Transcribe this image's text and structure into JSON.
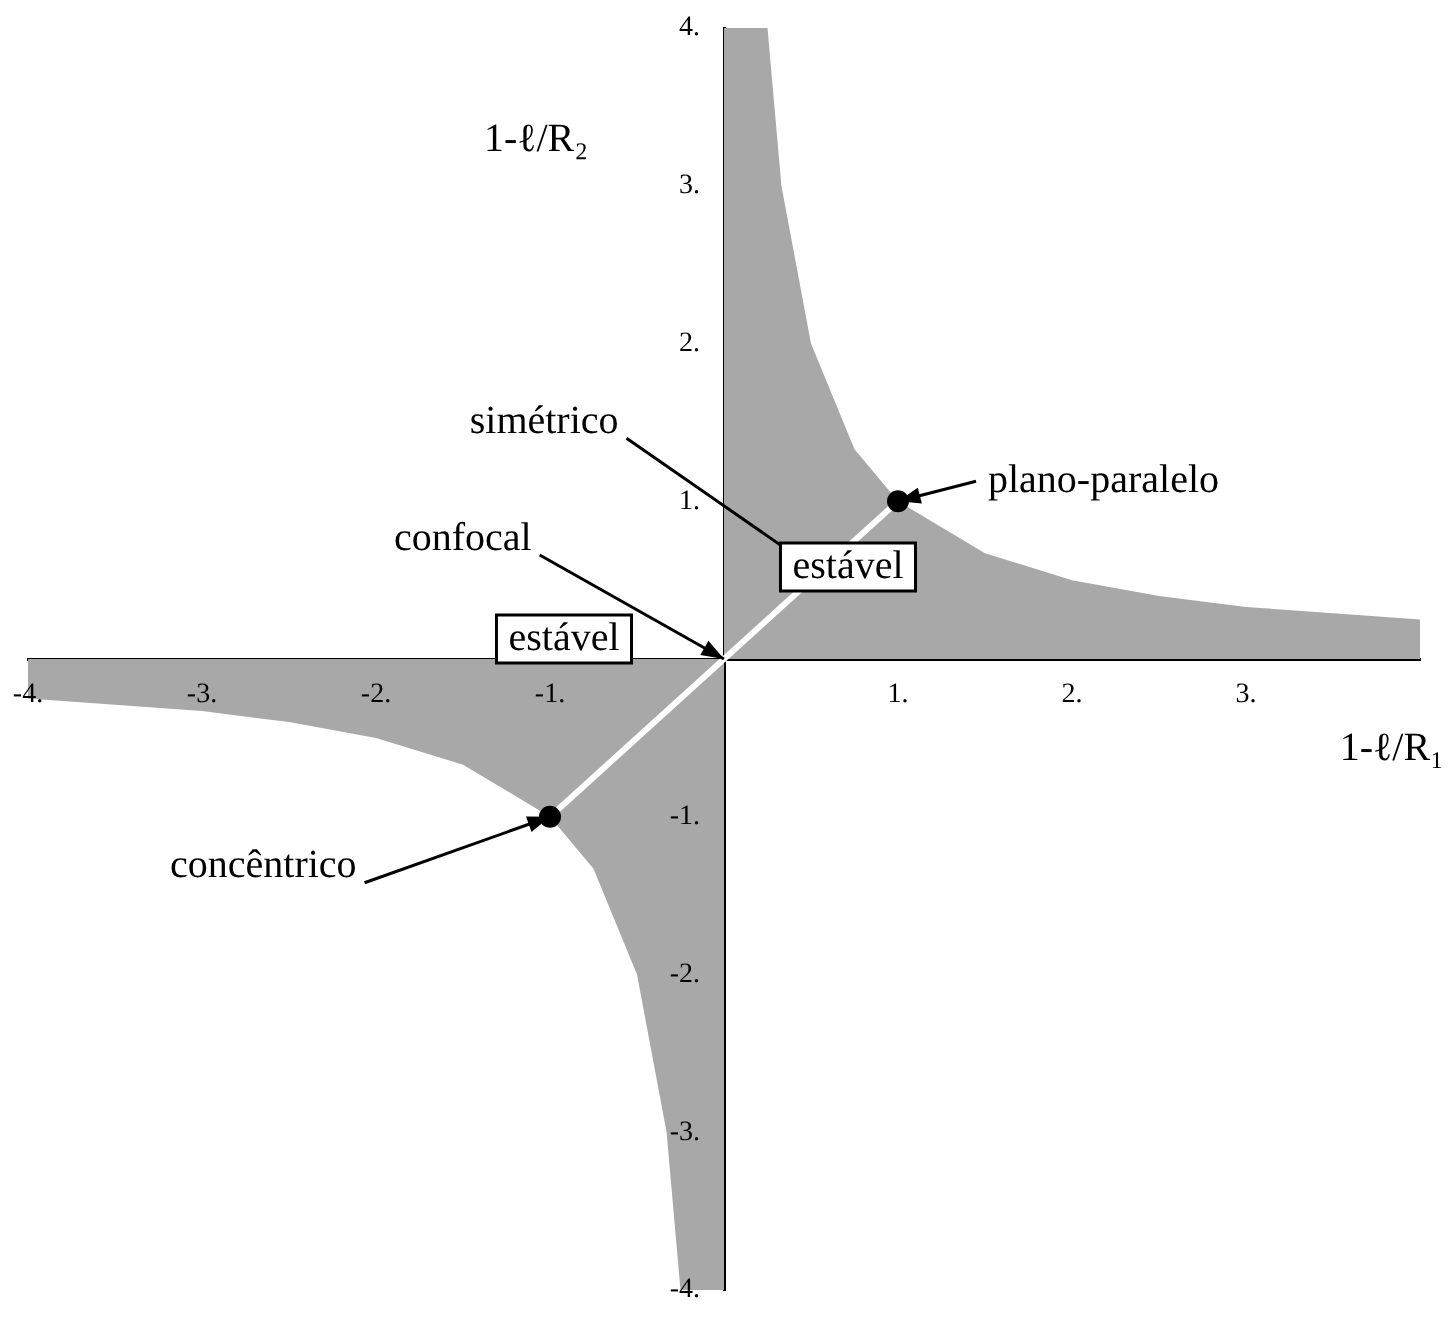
{
  "chart_data": {
    "type": "area",
    "xlabel": "1-ℓ/R₁",
    "ylabel": "1-ℓ/R₂",
    "xlim": [
      -4,
      4
    ],
    "ylim": [
      -4,
      4
    ],
    "xticks": [
      {
        "value": -4,
        "label": "-4."
      },
      {
        "value": -3,
        "label": "-3."
      },
      {
        "value": -2,
        "label": "-2."
      },
      {
        "value": -1,
        "label": "-1."
      },
      {
        "value": 1,
        "label": "1."
      },
      {
        "value": 2,
        "label": "2."
      },
      {
        "value": 3,
        "label": "3."
      }
    ],
    "yticks": [
      {
        "value": -4,
        "label": "-4."
      },
      {
        "value": -3,
        "label": "-3."
      },
      {
        "value": -2,
        "label": "-2."
      },
      {
        "value": -1,
        "label": "-1."
      },
      {
        "value": 1,
        "label": "1."
      },
      {
        "value": 2,
        "label": "2."
      },
      {
        "value": 3,
        "label": "3."
      },
      {
        "value": 4,
        "label": "4."
      }
    ],
    "grid": false,
    "legend": false,
    "series": [
      {
        "color": "#a8a8a8",
        "x": [
          0,
          0.25,
          0.33,
          0.5,
          0.75,
          1,
          1.5,
          2,
          2.5,
          3,
          3.5,
          4
        ],
        "values": [
          4,
          4,
          3,
          2,
          1.33,
          1,
          0.67,
          0.5,
          0.4,
          0.33,
          0.29,
          0.25
        ]
      },
      {
        "color": "#a8a8a8",
        "x": [
          -4,
          -3.5,
          -3,
          -2.5,
          -2,
          -1.5,
          -1,
          -0.75,
          -0.5,
          -0.33,
          -0.25,
          0
        ],
        "values": [
          -0.25,
          -0.29,
          -0.33,
          -0.4,
          -0.5,
          -0.67,
          -1,
          -1.33,
          -2,
          -3,
          -4,
          -4
        ]
      },
      {
        "type": "line",
        "color": "#ffffff",
        "marker": "none",
        "x": [
          -1,
          1
        ],
        "values": [
          -1,
          1
        ]
      },
      {
        "type": "scatter",
        "color": "#000000",
        "marker": "circle",
        "x": [
          -1,
          1
        ],
        "values": [
          -1,
          1
        ]
      }
    ],
    "annotations": [
      {
        "text": "simétrico",
        "x": 0.55,
        "y": 0.55
      },
      {
        "text": "plano-paralelo",
        "x": 1,
        "y": 1
      },
      {
        "text": "confocal",
        "x": 0,
        "y": 0
      },
      {
        "text": "concêntrico",
        "x": -1,
        "y": -1
      },
      "estável",
      "estável"
    ]
  }
}
